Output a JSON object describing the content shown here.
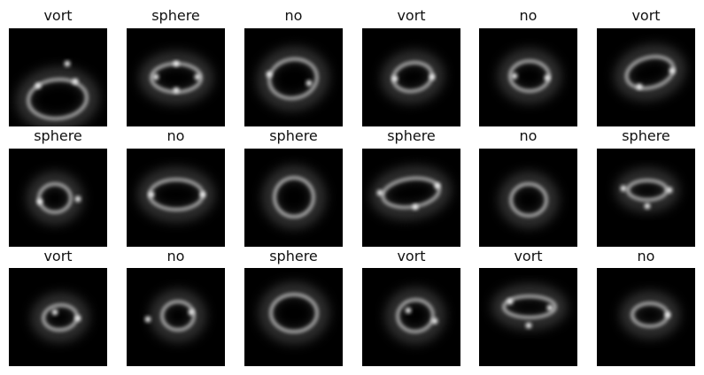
{
  "grid": {
    "background_color": "#000000",
    "glow_color": "#ffffff",
    "tiles": [
      {
        "label": "vort"
      },
      {
        "label": "sphere"
      },
      {
        "label": "no"
      },
      {
        "label": "vort"
      },
      {
        "label": "no"
      },
      {
        "label": "vort"
      },
      {
        "label": "sphere"
      },
      {
        "label": "no"
      },
      {
        "label": "sphere"
      },
      {
        "label": "sphere"
      },
      {
        "label": "no"
      },
      {
        "label": "sphere"
      },
      {
        "label": "vort"
      },
      {
        "label": "no"
      },
      {
        "label": "sphere"
      },
      {
        "label": "vort"
      },
      {
        "label": "vort"
      },
      {
        "label": "no"
      }
    ]
  }
}
